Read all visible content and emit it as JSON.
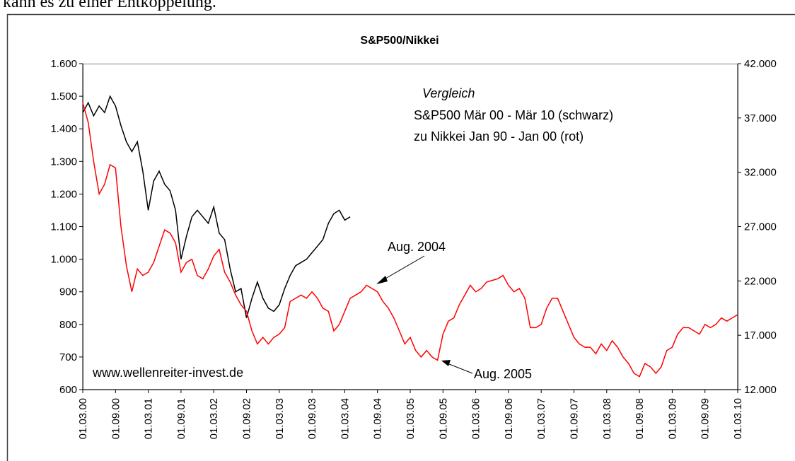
{
  "page_text": "kann es zu einer Entkoppelung.",
  "chart_data": {
    "type": "line",
    "title": "S&P500/Nikkei",
    "annotations": {
      "heading": "Vergleich",
      "line1": "S&P500 Mär 00 - Mär 10 (schwarz)",
      "line2": "zu Nikkei Jan 90 - Jan 00 (rot)",
      "source": "www.wellenreiter-invest.de",
      "aug2004": "Aug. 2004",
      "aug2005": "Aug. 2005"
    },
    "x": [
      "01.03.00",
      "01.04.00",
      "01.05.00",
      "01.06.00",
      "01.07.00",
      "01.08.00",
      "01.09.00",
      "01.10.00",
      "01.11.00",
      "01.12.00",
      "01.01.01",
      "01.02.01",
      "01.03.01",
      "01.04.01",
      "01.05.01",
      "01.06.01",
      "01.07.01",
      "01.08.01",
      "01.09.01",
      "01.10.01",
      "01.11.01",
      "01.12.01",
      "01.01.02",
      "01.02.02",
      "01.03.02",
      "01.04.02",
      "01.05.02",
      "01.06.02",
      "01.07.02",
      "01.08.02",
      "01.09.02",
      "01.10.02",
      "01.11.02",
      "01.12.02",
      "01.01.03",
      "01.02.03",
      "01.03.03",
      "01.04.03",
      "01.05.03",
      "01.06.03",
      "01.07.03",
      "01.08.03",
      "01.09.03",
      "01.10.03",
      "01.11.03",
      "01.12.03",
      "01.01.04",
      "01.02.04",
      "01.03.04",
      "01.04.04",
      "01.05.04",
      "01.06.04",
      "01.07.04",
      "01.08.04",
      "01.09.04",
      "01.10.04",
      "01.11.04",
      "01.12.04",
      "01.01.05",
      "01.02.05",
      "01.03.05",
      "01.04.05",
      "01.05.05",
      "01.06.05",
      "01.07.05",
      "01.08.05",
      "01.09.05",
      "01.10.05",
      "01.11.05",
      "01.12.05",
      "01.01.06",
      "01.02.06",
      "01.03.06",
      "01.04.06",
      "01.05.06",
      "01.06.06",
      "01.07.06",
      "01.08.06",
      "01.09.06",
      "01.10.06",
      "01.11.06",
      "01.12.06",
      "01.01.07",
      "01.02.07",
      "01.03.07",
      "01.04.07",
      "01.05.07",
      "01.06.07",
      "01.07.07",
      "01.08.07",
      "01.09.07",
      "01.10.07",
      "01.11.07",
      "01.12.07",
      "01.01.08",
      "01.02.08",
      "01.03.08",
      "01.04.08",
      "01.05.08",
      "01.06.08",
      "01.07.08",
      "01.08.08",
      "01.09.08",
      "01.10.08",
      "01.11.08",
      "01.12.08",
      "01.01.09",
      "01.02.09",
      "01.03.09",
      "01.04.09",
      "01.05.09",
      "01.06.09",
      "01.07.09",
      "01.08.09",
      "01.09.09",
      "01.10.09",
      "01.11.09",
      "01.12.09",
      "01.01.10",
      "01.02.10",
      "01.03.10"
    ],
    "xticks": [
      "01.03.00",
      "01.09.00",
      "01.03.01",
      "01.09.01",
      "01.03.02",
      "01.09.02",
      "01.03.03",
      "01.09.03",
      "01.03.04",
      "01.09.04",
      "01.03.05",
      "01.09.05",
      "01.03.06",
      "01.09.06",
      "01.03.07",
      "01.09.07",
      "01.03.08",
      "01.09.08",
      "01.03.09",
      "01.09.09",
      "01.03.10"
    ],
    "series": [
      {
        "color": "#000000",
        "axis": "y",
        "values": [
          1450,
          1480,
          1440,
          1470,
          1450,
          1500,
          1470,
          1410,
          1360,
          1330,
          1360,
          1270,
          1150,
          1240,
          1270,
          1230,
          1210,
          1150,
          1000,
          1070,
          1130,
          1150,
          1130,
          1110,
          1160,
          1080,
          1060,
          970,
          900,
          910,
          820,
          880,
          930,
          880,
          850,
          840,
          860,
          910,
          950,
          980,
          990,
          1000,
          1020,
          1040,
          1060,
          1110,
          1140,
          1150,
          1120,
          1130,
          null,
          null,
          null,
          null,
          null,
          null,
          null,
          null,
          null,
          null,
          null,
          null,
          null,
          null,
          null,
          null,
          null,
          null,
          null,
          null,
          null,
          null,
          null,
          null,
          null,
          null,
          null,
          null,
          null,
          null,
          null,
          null,
          null,
          null,
          null,
          null,
          null,
          null,
          null,
          null,
          null,
          null,
          null,
          null,
          null,
          null,
          null,
          null,
          null,
          null,
          null,
          null,
          null,
          null,
          null,
          null,
          null,
          null,
          null,
          null,
          null,
          null,
          null,
          null,
          null,
          null,
          null,
          null,
          null,
          null,
          null
        ]
      },
      {
        "color": "#ff0000",
        "axis": "y2",
        "values": [
          38400,
          36600,
          33000,
          30000,
          30900,
          32700,
          32400,
          27000,
          23400,
          21000,
          23100,
          22500,
          22800,
          23700,
          25200,
          26700,
          26400,
          25500,
          22800,
          23700,
          24000,
          22500,
          22200,
          23100,
          24300,
          24900,
          22800,
          21900,
          20700,
          19800,
          19200,
          17400,
          16200,
          16800,
          16200,
          16800,
          17100,
          17700,
          20100,
          20400,
          20700,
          20400,
          21000,
          20400,
          19500,
          19200,
          17400,
          18000,
          19200,
          20400,
          20700,
          21000,
          21600,
          21300,
          21000,
          20100,
          19500,
          18600,
          17400,
          16200,
          16800,
          15600,
          15000,
          15600,
          15000,
          14700,
          17100,
          18300,
          18600,
          19800,
          20700,
          21600,
          21000,
          21300,
          21900,
          22050,
          22200,
          22500,
          21600,
          21000,
          21300,
          20400,
          17700,
          17700,
          18000,
          19500,
          20400,
          20400,
          19200,
          18000,
          16800,
          16200,
          15900,
          15900,
          15300,
          16200,
          15600,
          16500,
          15900,
          15000,
          14400,
          13500,
          13200,
          14400,
          14100,
          13500,
          14100,
          15600,
          15900,
          17100,
          17700,
          17700,
          17400,
          17100,
          18000,
          17700,
          18000,
          18600,
          18300,
          18600,
          18900
        ]
      }
    ],
    "ylim": [
      600,
      1600
    ],
    "yticks": [
      600,
      700,
      800,
      900,
      {
        "value": 1000,
        "label": "1.000"
      },
      {
        "value": 1100,
        "label": "1.100"
      },
      {
        "value": 1200,
        "label": "1.200"
      },
      {
        "value": 1300,
        "label": "1.300"
      },
      {
        "value": 1400,
        "label": "1.400"
      },
      {
        "value": 1500,
        "label": "1.500"
      },
      {
        "value": 1600,
        "label": "1.600"
      }
    ],
    "y2lim": [
      12000,
      42000
    ],
    "y2ticks": [
      {
        "value": 12000,
        "label": "12.000"
      },
      {
        "value": 17000,
        "label": "17.000"
      },
      {
        "value": 22000,
        "label": "22.000"
      },
      {
        "value": 27000,
        "label": "27.000"
      },
      {
        "value": 32000,
        "label": "32.000"
      },
      {
        "value": 37000,
        "label": "37.000"
      },
      {
        "value": 42000,
        "label": "42.000"
      }
    ]
  }
}
